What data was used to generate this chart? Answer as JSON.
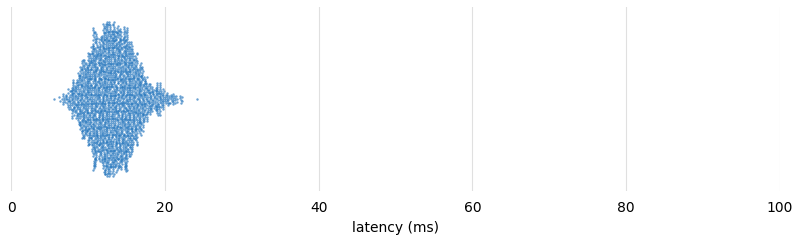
{
  "xlabel": "latency (ms)",
  "xlim": [
    0,
    100
  ],
  "xticks": [
    0,
    20,
    40,
    60,
    80,
    100
  ],
  "dot_color": "#2878be",
  "dot_size": 3,
  "dot_alpha": 0.7,
  "n_points": 2500,
  "seed": 42,
  "background_color": "#ffffff",
  "grid_color": "#e0e0e0"
}
